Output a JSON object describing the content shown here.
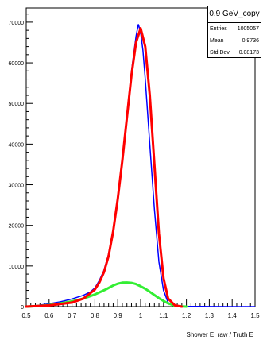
{
  "stats_box": {
    "title": "0.9 GeV_copy",
    "entries_label": "Entries",
    "entries_value": "1005057",
    "mean_label": "Mean",
    "mean_value": "0.9736",
    "std_label": "Std Dev",
    "std_value": "0.08173"
  },
  "colors": {
    "histogram": "#0000ff",
    "total_fit": "#ff0000",
    "background_fit": "#33ee33",
    "axis": "#000000"
  },
  "chart_data": {
    "type": "line",
    "title": "",
    "xlabel": "Shower E_raw / Truth E",
    "ylabel": "",
    "xlim": [
      0.5,
      1.5
    ],
    "ylim": [
      0,
      73500
    ],
    "grid": false,
    "x_ticks": [
      0.5,
      0.6,
      0.7,
      0.8,
      0.9,
      1,
      1.1,
      1.2,
      1.3,
      1.4,
      1.5
    ],
    "x_tick_labels": [
      "0.5",
      "0.6",
      "0.7",
      "0.8",
      "0.9",
      "1",
      "1.1",
      "1.2",
      "1.3",
      "1.4",
      "1.5"
    ],
    "y_ticks": [
      0,
      10000,
      20000,
      30000,
      40000,
      50000,
      60000,
      70000
    ],
    "y_tick_labels": [
      "0",
      "10000",
      "20000",
      "30000",
      "40000",
      "50000",
      "60000",
      "70000"
    ],
    "series": [
      {
        "kind": "histogram",
        "color": "#0000ff",
        "x": [
          0.5,
          0.55,
          0.6,
          0.65,
          0.7,
          0.75,
          0.78,
          0.8,
          0.82,
          0.84,
          0.86,
          0.88,
          0.9,
          0.92,
          0.94,
          0.96,
          0.98,
          0.99,
          1.0,
          1.01,
          1.02,
          1.04,
          1.06,
          1.08,
          1.1,
          1.12,
          1.15,
          1.2,
          1.3,
          1.4,
          1.5
        ],
        "y": [
          0,
          300,
          700,
          1200,
          1900,
          2800,
          3600,
          4600,
          6500,
          9000,
          13000,
          19000,
          27000,
          36000,
          47000,
          58000,
          66500,
          69500,
          67500,
          63000,
          56000,
          40000,
          24000,
          11000,
          4000,
          1000,
          300,
          80,
          20,
          5,
          0
        ]
      },
      {
        "kind": "total_fit",
        "color": "#ff0000",
        "x": [
          0.5,
          0.6,
          0.7,
          0.75,
          0.8,
          0.82,
          0.84,
          0.86,
          0.88,
          0.9,
          0.92,
          0.94,
          0.96,
          0.98,
          1.0,
          1.02,
          1.04,
          1.06,
          1.08,
          1.1,
          1.12,
          1.15,
          1.18
        ],
        "y": [
          0,
          300,
          1000,
          2000,
          4200,
          6000,
          8500,
          12500,
          18500,
          26500,
          36000,
          46500,
          57000,
          65000,
          68500,
          64000,
          52000,
          35000,
          18000,
          7000,
          2000,
          300,
          0
        ]
      },
      {
        "kind": "background_fit",
        "color": "#33ee33",
        "x": [
          0.5,
          0.55,
          0.6,
          0.65,
          0.7,
          0.75,
          0.8,
          0.85,
          0.88,
          0.9,
          0.92,
          0.94,
          0.96,
          0.98,
          1.0,
          1.02,
          1.04,
          1.06,
          1.08,
          1.1,
          1.12,
          1.15,
          1.18,
          1.2
        ],
        "y": [
          0,
          150,
          400,
          800,
          1300,
          2000,
          3000,
          4300,
          5200,
          5650,
          5900,
          5950,
          5850,
          5550,
          5000,
          4400,
          3650,
          2850,
          2100,
          1400,
          800,
          200,
          30,
          0
        ]
      }
    ]
  }
}
